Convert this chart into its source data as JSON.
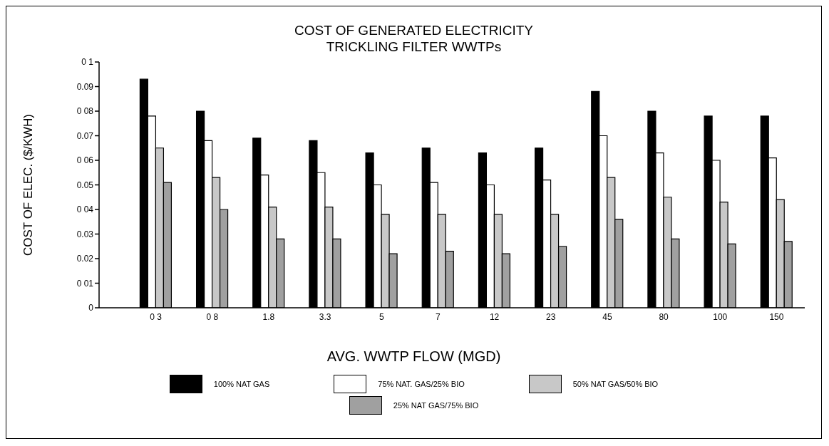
{
  "chart_data": {
    "type": "bar",
    "title": "COST OF GENERATED ELECTRICITY",
    "subtitle": "TRICKLING FILTER WWTPs",
    "xlabel": "AVG. WWTP FLOW (MGD)",
    "ylabel": "COST OF ELEC. ($/KWH)",
    "categories": [
      "0 3",
      "0 8",
      "1.8",
      "3.3",
      "5",
      "7",
      "12",
      "23",
      "45",
      "80",
      "100",
      "150"
    ],
    "series": [
      {
        "name": "100% NAT  GAS",
        "color": "#000000",
        "values": [
          0.093,
          0.08,
          0.069,
          0.068,
          0.063,
          0.065,
          0.063,
          0.065,
          0.088,
          0.08,
          0.078,
          0.078
        ]
      },
      {
        "name": "75% NAT. GAS/25% BIO",
        "color": "#ffffff",
        "values": [
          0.078,
          0.068,
          0.054,
          0.055,
          0.05,
          0.051,
          0.05,
          0.052,
          0.07,
          0.063,
          0.06,
          0.061
        ]
      },
      {
        "name": "50% NAT  GAS/50% BIO",
        "color": "#c8c8c8",
        "values": [
          0.065,
          0.053,
          0.041,
          0.041,
          0.038,
          0.038,
          0.038,
          0.038,
          0.053,
          0.045,
          0.043,
          0.044
        ]
      },
      {
        "name": "25% NAT  GAS/75% BIO",
        "color": "#a0a0a0",
        "values": [
          0.051,
          0.04,
          0.028,
          0.028,
          0.022,
          0.023,
          0.022,
          0.025,
          0.036,
          0.028,
          0.026,
          0.027
        ]
      }
    ],
    "ylim": [
      0,
      0.1
    ],
    "yticks": [
      {
        "value": 0,
        "label": "0"
      },
      {
        "value": 0.01,
        "label": "0 01"
      },
      {
        "value": 0.02,
        "label": "0.02"
      },
      {
        "value": 0.03,
        "label": "0.03"
      },
      {
        "value": 0.04,
        "label": "0 04"
      },
      {
        "value": 0.05,
        "label": "0.05"
      },
      {
        "value": 0.06,
        "label": "0 06"
      },
      {
        "value": 0.07,
        "label": "0.07"
      },
      {
        "value": 0.08,
        "label": "0 08"
      },
      {
        "value": 0.09,
        "label": "0.09"
      },
      {
        "value": 0.1,
        "label": "0 1"
      }
    ],
    "legend": "bottom"
  }
}
